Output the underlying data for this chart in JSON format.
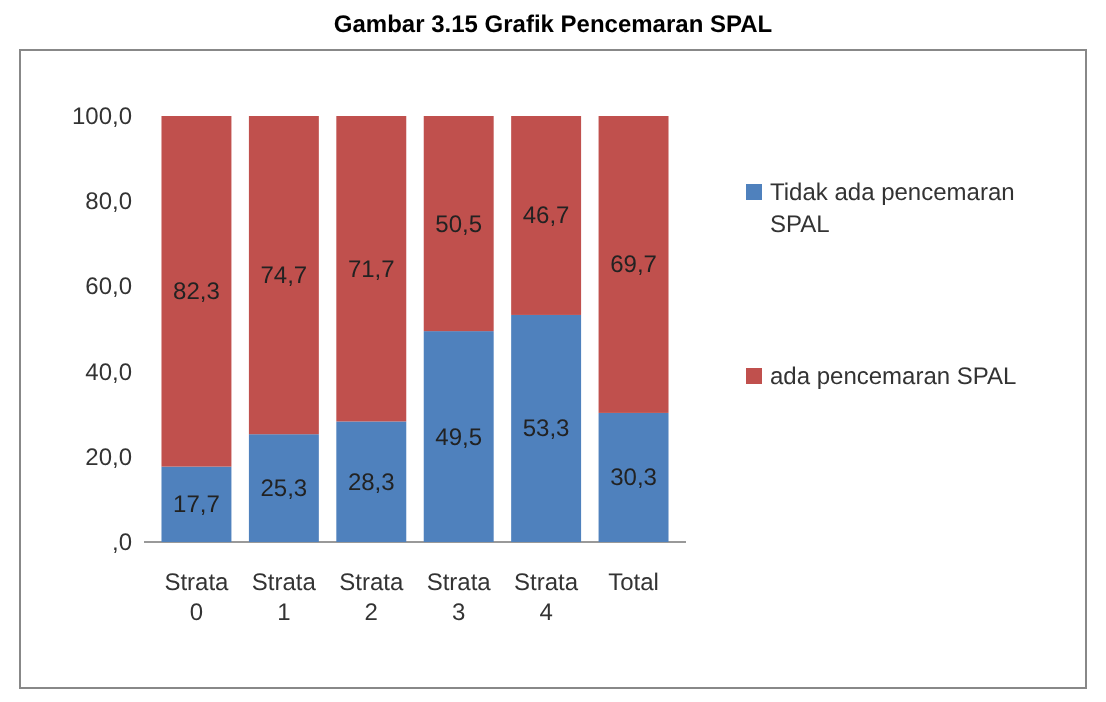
{
  "chart_data": {
    "type": "bar",
    "title": "Gambar 3.15 Grafik Pencemaran SPAL",
    "stacked": true,
    "categories": [
      "Strata 0",
      "Strata 1",
      "Strata 2",
      "Strata 3",
      "Strata 4",
      "Total"
    ],
    "series": [
      {
        "name": "Tidak ada pencemaran SPAL",
        "color": "#4f81bd",
        "values": [
          17.7,
          25.3,
          28.3,
          49.5,
          53.3,
          30.3
        ],
        "value_labels": [
          "17,7",
          "25,3",
          "28,3",
          "49,5",
          "53,3",
          "30,3"
        ]
      },
      {
        "name": "ada pencemaran SPAL",
        "color": "#c0504d",
        "values": [
          82.3,
          74.7,
          71.7,
          50.5,
          46.7,
          69.7
        ],
        "value_labels": [
          "82,3",
          "74,7",
          "71,7",
          "50,5",
          "46,7",
          "69,7"
        ]
      }
    ],
    "ylim": [
      0,
      100
    ],
    "yticks": [
      {
        "value": 0,
        "label": ",0"
      },
      {
        "value": 20,
        "label": "20,0"
      },
      {
        "value": 40,
        "label": "40,0"
      },
      {
        "value": 60,
        "label": "60,0"
      },
      {
        "value": 80,
        "label": "80,0"
      },
      {
        "value": 100,
        "label": "100,0"
      }
    ],
    "legend": "right"
  }
}
